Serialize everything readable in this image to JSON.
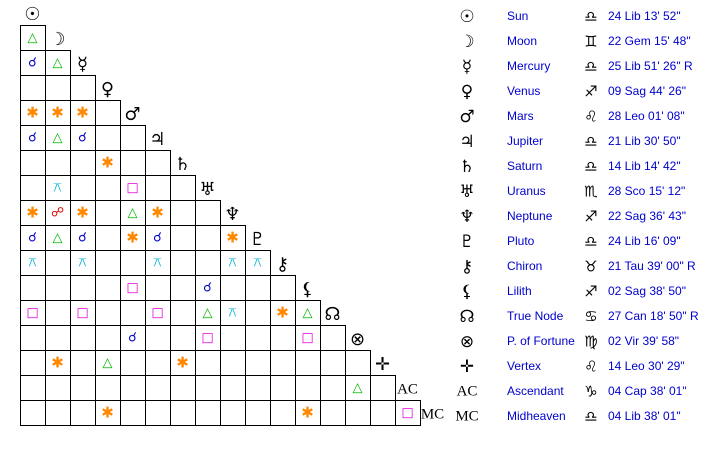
{
  "bodies": [
    {
      "symbol": "☉",
      "name": "Sun",
      "sign": "♎",
      "position": "24 Lib 13' 52\""
    },
    {
      "symbol": "☽",
      "name": "Moon",
      "sign": "♊",
      "position": "22 Gem 15' 48\""
    },
    {
      "symbol": "☿",
      "name": "Mercury",
      "sign": "♎",
      "position": "25 Lib 51' 26\" R"
    },
    {
      "symbol": "♀",
      "name": "Venus",
      "sign": "♐",
      "position": "09 Sag 44' 26\""
    },
    {
      "symbol": "♂",
      "name": "Mars",
      "sign": "♌",
      "position": "28 Leo 01' 08\""
    },
    {
      "symbol": "♃",
      "name": "Jupiter",
      "sign": "♎",
      "position": "21 Lib 30' 50\""
    },
    {
      "symbol": "♄",
      "name": "Saturn",
      "sign": "♎",
      "position": "14 Lib 14' 42\""
    },
    {
      "symbol": "♅",
      "name": "Uranus",
      "sign": "♏",
      "position": "28 Sco 15' 12\""
    },
    {
      "symbol": "♆",
      "name": "Neptune",
      "sign": "♐",
      "position": "22 Sag 36' 43\""
    },
    {
      "symbol": "♇",
      "name": "Pluto",
      "sign": "♎",
      "position": "24 Lib 16' 09\""
    },
    {
      "symbol": "⚷",
      "name": "Chiron",
      "sign": "♉",
      "position": "21 Tau 39' 00\" R"
    },
    {
      "symbol": "⚸",
      "name": "Lilith",
      "sign": "♐",
      "position": "02 Sag 38' 50\""
    },
    {
      "symbol": "☊",
      "name": "True Node",
      "sign": "♋",
      "position": "27 Can 18' 50\" R"
    },
    {
      "symbol": "⊗",
      "name": "P. of Fortune",
      "sign": "♍",
      "position": "02 Vir 39' 58\""
    },
    {
      "symbol": "✛",
      "name": "Vertex",
      "sign": "♌",
      "position": "14 Leo 30' 29\""
    },
    {
      "symbol": "AC",
      "name": "Ascendant",
      "sign": "♑",
      "position": "04 Cap 38' 01\""
    },
    {
      "symbol": "MC",
      "name": "Midheaven",
      "sign": "♎",
      "position": "04 Lib 38' 01\""
    }
  ],
  "aspect_grid": [
    [
      "△"
    ],
    [
      "☌",
      "△"
    ],
    [
      null,
      null,
      null
    ],
    [
      "✱",
      "✱",
      "✱",
      null
    ],
    [
      "☌",
      "△",
      "☌",
      null,
      null
    ],
    [
      null,
      null,
      null,
      "✱",
      null,
      null
    ],
    [
      null,
      "⚻",
      null,
      null,
      "□",
      null,
      null
    ],
    [
      "✱",
      "☍",
      "✱",
      null,
      "△",
      "✱",
      null,
      null
    ],
    [
      "☌",
      "△",
      "☌",
      null,
      "✱",
      "☌",
      null,
      null,
      "✱"
    ],
    [
      "⚻",
      null,
      "⚻",
      null,
      null,
      "⚻",
      null,
      null,
      "⚻",
      "⚻"
    ],
    [
      null,
      null,
      null,
      null,
      "□",
      null,
      null,
      "☌",
      null,
      null,
      null
    ],
    [
      "□",
      null,
      "□",
      null,
      null,
      "□",
      null,
      "△",
      "⚻",
      null,
      "✱",
      "△"
    ],
    [
      null,
      null,
      null,
      null,
      "☌",
      null,
      null,
      "□",
      null,
      null,
      null,
      "□",
      null
    ],
    [
      null,
      "✱",
      null,
      "△",
      null,
      null,
      "✱",
      null,
      null,
      null,
      null,
      null,
      null,
      null
    ],
    [
      null,
      null,
      null,
      null,
      null,
      null,
      null,
      null,
      null,
      null,
      null,
      null,
      null,
      "△",
      null
    ],
    [
      null,
      null,
      null,
      "✱",
      null,
      null,
      null,
      null,
      null,
      null,
      null,
      "✱",
      null,
      null,
      null,
      "□"
    ]
  ],
  "aspect_colors": {
    "△": "#00b800",
    "☌": "#0000cc",
    "✱": "#ff8800",
    "□": "#e000e0",
    "⚻": "#00b4d8",
    "☍": "#e00000"
  },
  "name_color": "#0000cc"
}
